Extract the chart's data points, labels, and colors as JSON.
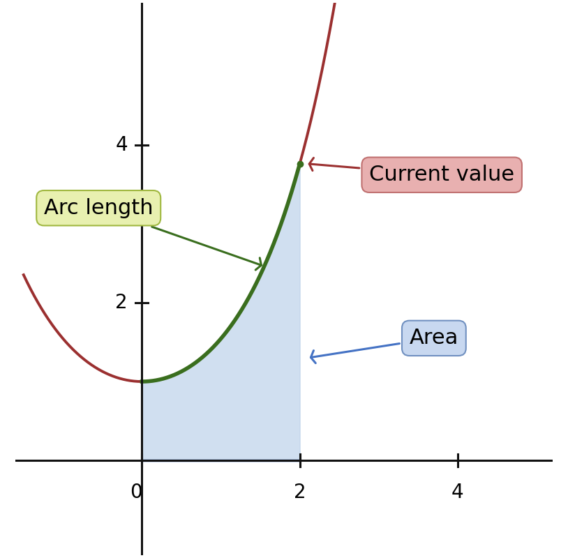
{
  "x_lim": [
    -1.6,
    5.2
  ],
  "y_lim": [
    -1.2,
    5.8
  ],
  "curve_color": "#9b3030",
  "arc_color": "#3a6e1e",
  "area_color": "#b8cfe8",
  "area_alpha": 0.65,
  "arc_x_start": 0.0,
  "arc_x_end": 2.0,
  "label_current_value": "Current value",
  "label_arc_length": "Arc length",
  "label_area": "Area",
  "current_value_box_facecolor": "#e8b0b0",
  "current_value_box_edgecolor": "#c07070",
  "arc_length_box_facecolor": "#e8f0b0",
  "arc_length_box_edgecolor": "#a0b840",
  "area_box_facecolor": "#c8d8f0",
  "area_box_edgecolor": "#7090c0",
  "axis_color": "#111111",
  "background_color": "#ffffff",
  "spine_linewidth": 2.2,
  "curve_linewidth": 2.8,
  "arc_linewidth": 4.0,
  "x_ticks": [
    0,
    2,
    4
  ],
  "y_ticks": [
    2,
    4
  ],
  "tick_fontsize": 20,
  "label_fontsize": 22
}
